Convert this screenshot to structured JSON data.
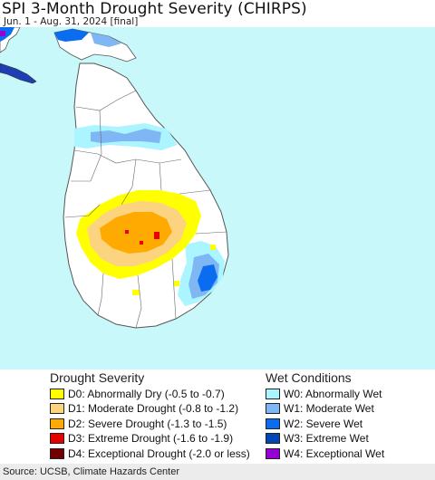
{
  "header": {
    "title": "SPI 3-Month Drought Severity (CHIRPS)",
    "subtitle": "Jun. 1 - Aug. 31, 2024 [final]"
  },
  "legend": {
    "drought_title": "Drought Severity",
    "wet_title": "Wet Conditions",
    "drought_items": [
      {
        "label": "D0: Abnormally Dry (-0.5 to -0.7)",
        "color": "#ffff00"
      },
      {
        "label": "D1: Moderate Drought (-0.8 to -1.2)",
        "color": "#fcd37f"
      },
      {
        "label": "D2: Severe Drought (-1.3 to -1.5)",
        "color": "#ffaa00"
      },
      {
        "label": "D3: Extreme Drought (-1.6 to -1.9)",
        "color": "#e60000"
      },
      {
        "label": "D4: Exceptional Drought (-2.0 or less)",
        "color": "#730000"
      }
    ],
    "wet_items": [
      {
        "label": "W0: Abnormally Wet",
        "color": "#aaf5ff"
      },
      {
        "label": "W1: Moderate Wet",
        "color": "#7fb7f5"
      },
      {
        "label": "W2: Severe Wet",
        "color": "#0a6cf0"
      },
      {
        "label": "W3: Extreme Wet",
        "color": "#0046b4"
      },
      {
        "label": "W4: Exceptional Wet",
        "color": "#9600d2"
      }
    ]
  },
  "footer": {
    "source": "Source: UCSB, Climate Hazards Center"
  },
  "colors": {
    "ocean": "#c9f8fb",
    "land": "#ffffff",
    "border": "#555555"
  }
}
